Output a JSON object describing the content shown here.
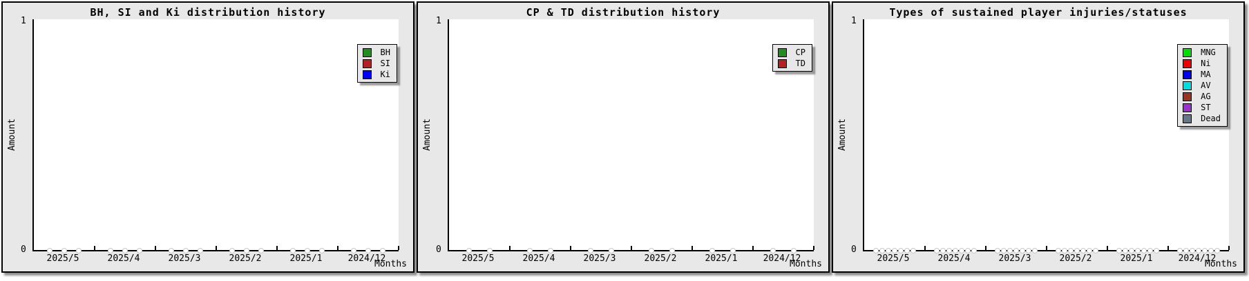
{
  "page": {
    "background": "#ffffff",
    "panel_background": "#e8e8e8",
    "axis_color": "#000000",
    "zero_marker_fill": "#ffffff",
    "zero_marker_outline": "#c8c8c8"
  },
  "chart_data": [
    {
      "type": "line",
      "title": "BH, SI and Ki distribution history",
      "xlabel": "Months",
      "ylabel": "Amount",
      "categories": [
        "2025/5",
        "2025/4",
        "2025/3",
        "2025/2",
        "2025/1",
        "2024/12"
      ],
      "series": [
        {
          "name": "BH",
          "color": "#228B22",
          "values": [
            0,
            0,
            0,
            0,
            0,
            0
          ]
        },
        {
          "name": "SI",
          "color": "#B22222",
          "values": [
            0,
            0,
            0,
            0,
            0,
            0
          ]
        },
        {
          "name": "Ki",
          "color": "#0000FF",
          "values": [
            0,
            0,
            0,
            0,
            0,
            0
          ]
        }
      ],
      "ylim": [
        0,
        1
      ],
      "yticks": [
        "0",
        "1"
      ],
      "grid": false,
      "legend_position": "top-right"
    },
    {
      "type": "line",
      "title": "CP & TD distribution history",
      "xlabel": "Months",
      "ylabel": "Amount",
      "categories": [
        "2025/5",
        "2025/4",
        "2025/3",
        "2025/2",
        "2025/1",
        "2024/12"
      ],
      "series": [
        {
          "name": "CP",
          "color": "#228B22",
          "values": [
            0,
            0,
            0,
            0,
            0,
            0
          ]
        },
        {
          "name": "TD",
          "color": "#B22222",
          "values": [
            0,
            0,
            0,
            0,
            0,
            0
          ]
        }
      ],
      "ylim": [
        0,
        1
      ],
      "yticks": [
        "0",
        "1"
      ],
      "grid": false,
      "legend_position": "top-right"
    },
    {
      "type": "line",
      "title": "Types of sustained player injuries/statuses",
      "xlabel": "Months",
      "ylabel": "Amount",
      "categories": [
        "2025/5",
        "2025/4",
        "2025/3",
        "2025/2",
        "2025/1",
        "2024/12"
      ],
      "series": [
        {
          "name": "MNG",
          "color": "#00DD00",
          "values": [
            0,
            0,
            0,
            0,
            0,
            0
          ]
        },
        {
          "name": "Ni",
          "color": "#EE0000",
          "values": [
            0,
            0,
            0,
            0,
            0,
            0
          ]
        },
        {
          "name": "MA",
          "color": "#0000EE",
          "values": [
            0,
            0,
            0,
            0,
            0,
            0
          ]
        },
        {
          "name": "AV",
          "color": "#00DDDD",
          "values": [
            0,
            0,
            0,
            0,
            0,
            0
          ]
        },
        {
          "name": "AG",
          "color": "#993322",
          "values": [
            0,
            0,
            0,
            0,
            0,
            0
          ]
        },
        {
          "name": "ST",
          "color": "#9933CC",
          "values": [
            0,
            0,
            0,
            0,
            0,
            0
          ]
        },
        {
          "name": "Dead",
          "color": "#667788",
          "values": [
            0,
            0,
            0,
            0,
            0,
            0
          ]
        }
      ],
      "ylim": [
        0,
        1
      ],
      "yticks": [
        "0",
        "1"
      ],
      "grid": false,
      "legend_position": "top-right"
    }
  ]
}
